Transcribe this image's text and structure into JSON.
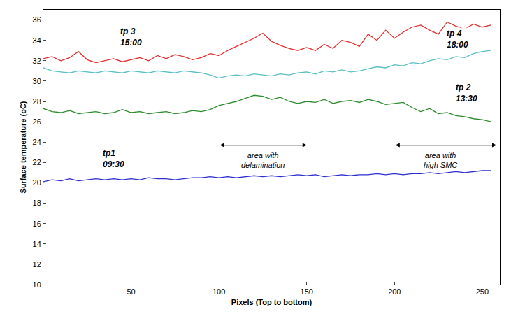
{
  "chart_data": {
    "type": "line",
    "x_title": "Pixels (Top to bottom)",
    "y_title": "Surface temperature (oC)",
    "xlim": [
      0,
      260
    ],
    "xticks": [
      50,
      100,
      150,
      200,
      250
    ],
    "ylim": [
      10,
      37
    ],
    "yticks": [
      10,
      12,
      14,
      16,
      18,
      20,
      22,
      24,
      26,
      28,
      30,
      32,
      34,
      36
    ],
    "grid": false,
    "x": [
      0,
      5,
      10,
      15,
      20,
      25,
      30,
      35,
      40,
      45,
      50,
      55,
      60,
      65,
      70,
      75,
      80,
      85,
      90,
      95,
      100,
      105,
      110,
      115,
      120,
      125,
      130,
      135,
      140,
      145,
      150,
      155,
      160,
      165,
      170,
      175,
      180,
      185,
      190,
      195,
      200,
      205,
      210,
      215,
      220,
      225,
      230,
      235,
      240,
      245,
      250,
      255
    ],
    "series": [
      {
        "name": "tp1\n09:30",
        "color": "#2f2fd0",
        "label": {
          "x": 40,
          "y": 22.4
        },
        "values": [
          20.1,
          20.3,
          20.2,
          20.4,
          20.2,
          20.3,
          20.4,
          20.3,
          20.4,
          20.3,
          20.4,
          20.3,
          20.5,
          20.4,
          20.4,
          20.3,
          20.4,
          20.5,
          20.5,
          20.6,
          20.5,
          20.6,
          20.5,
          20.6,
          20.7,
          20.6,
          20.7,
          20.6,
          20.7,
          20.8,
          20.7,
          20.8,
          20.6,
          20.7,
          20.8,
          20.7,
          20.8,
          20.8,
          20.9,
          20.8,
          20.9,
          20.8,
          20.9,
          20.9,
          21.0,
          20.9,
          21.0,
          21.1,
          21.0,
          21.1,
          21.2,
          21.2
        ]
      },
      {
        "name": "tp 2\n13:30",
        "color": "#2e8b2e",
        "label": {
          "x": 241,
          "y": 28.8
        },
        "values": [
          27.3,
          27.0,
          26.9,
          27.1,
          26.8,
          26.9,
          27.0,
          26.8,
          26.9,
          27.2,
          26.9,
          27.0,
          26.8,
          26.9,
          27.0,
          26.8,
          26.9,
          27.1,
          27.0,
          27.2,
          27.6,
          27.8,
          28.0,
          28.3,
          28.6,
          28.5,
          28.2,
          28.4,
          28.0,
          27.8,
          28.0,
          27.9,
          28.2,
          27.8,
          28.0,
          28.1,
          27.9,
          28.2,
          28.0,
          27.7,
          27.8,
          27.9,
          27.4,
          27.0,
          27.3,
          26.8,
          26.9,
          26.6,
          26.5,
          26.3,
          26.2,
          26.0
        ]
      },
      {
        "name": "tp 3\n15:00",
        "color": "#e03030",
        "label": {
          "x": 50,
          "y": 34.3
        },
        "values": [
          32.2,
          32.4,
          32.0,
          32.3,
          32.9,
          32.1,
          31.8,
          32.0,
          32.2,
          31.9,
          32.1,
          32.3,
          32.0,
          32.5,
          32.2,
          32.6,
          32.4,
          32.1,
          32.3,
          32.7,
          32.5,
          33.0,
          33.4,
          33.8,
          34.2,
          34.7,
          33.9,
          33.5,
          33.2,
          33.0,
          33.3,
          33.0,
          33.6,
          33.2,
          34.0,
          33.8,
          33.4,
          34.6,
          34.0,
          35.0,
          34.2,
          34.8,
          35.3,
          35.5,
          35.0,
          34.6,
          35.8,
          35.4,
          35.1,
          35.6,
          35.3,
          35.5
        ]
      },
      {
        "name": "tp 4\n18:00",
        "color": "#5bbfc4",
        "label": {
          "x": 236,
          "y": 34.1
        },
        "values": [
          31.3,
          31.0,
          30.9,
          30.8,
          31.0,
          30.9,
          30.8,
          31.0,
          30.9,
          30.8,
          31.0,
          30.9,
          30.8,
          31.0,
          30.9,
          30.8,
          31.0,
          30.9,
          30.8,
          30.6,
          30.3,
          30.5,
          30.6,
          30.5,
          30.7,
          30.6,
          30.5,
          30.7,
          30.6,
          30.8,
          30.9,
          30.7,
          31.0,
          30.9,
          31.1,
          30.9,
          31.0,
          31.2,
          31.4,
          31.3,
          31.6,
          31.5,
          31.8,
          31.7,
          32.0,
          32.2,
          32.1,
          32.4,
          32.3,
          32.7,
          32.9,
          33.0
        ]
      }
    ],
    "annotations": [
      {
        "text": "area with\ndelamination",
        "x": 125,
        "y": 22.2,
        "arrow": {
          "from": 100,
          "to": 150,
          "y": 23.7
        }
      },
      {
        "text": "area with\nhigh SMC",
        "x": 226,
        "y": 22.2,
        "arrow": {
          "from": 200,
          "to": 258,
          "y": 23.7
        }
      }
    ]
  }
}
